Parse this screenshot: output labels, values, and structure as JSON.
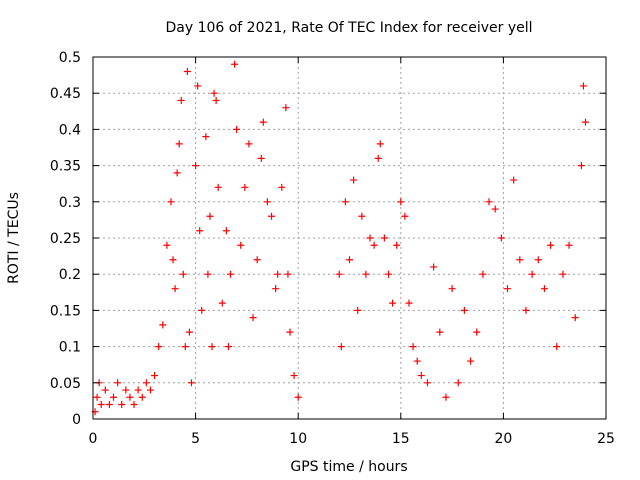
{
  "chart_data": {
    "type": "scatter",
    "title": "Day 106 of 2021, Rate Of TEC Index for receiver yell",
    "xlabel": "GPS time / hours",
    "ylabel": "ROTI / TECUs",
    "xlim": [
      0,
      25
    ],
    "ylim": [
      0,
      0.5
    ],
    "xticks": [
      0,
      5,
      10,
      15,
      20,
      25
    ],
    "yticks": [
      0,
      0.05,
      0.1,
      0.15,
      0.2,
      0.25,
      0.3,
      0.35,
      0.4,
      0.45,
      0.5
    ],
    "xtick_labels": [
      "0",
      "5",
      "10",
      "15",
      "20",
      "25"
    ],
    "ytick_labels": [
      "0",
      "0.05",
      "0.1",
      "0.15",
      "0.2",
      "0.25",
      "0.3",
      "0.35",
      "0.4",
      "0.45",
      "0.5"
    ],
    "grid": true,
    "marker": "+",
    "color": "#ff0000",
    "series": [
      {
        "name": "ROTI",
        "points": [
          [
            0.1,
            0.01
          ],
          [
            0.2,
            0.03
          ],
          [
            0.3,
            0.05
          ],
          [
            0.4,
            0.02
          ],
          [
            0.6,
            0.04
          ],
          [
            0.8,
            0.02
          ],
          [
            1.0,
            0.03
          ],
          [
            1.2,
            0.05
          ],
          [
            1.4,
            0.02
          ],
          [
            1.6,
            0.04
          ],
          [
            1.8,
            0.03
          ],
          [
            2.0,
            0.02
          ],
          [
            2.2,
            0.04
          ],
          [
            2.4,
            0.03
          ],
          [
            2.6,
            0.05
          ],
          [
            2.8,
            0.04
          ],
          [
            3.0,
            0.06
          ],
          [
            3.2,
            0.1
          ],
          [
            3.4,
            0.13
          ],
          [
            3.6,
            0.24
          ],
          [
            3.8,
            0.3
          ],
          [
            3.9,
            0.22
          ],
          [
            4.0,
            0.18
          ],
          [
            4.1,
            0.34
          ],
          [
            4.2,
            0.38
          ],
          [
            4.3,
            0.44
          ],
          [
            4.4,
            0.2
          ],
          [
            4.5,
            0.1
          ],
          [
            4.6,
            0.48
          ],
          [
            4.7,
            0.12
          ],
          [
            4.8,
            0.05
          ],
          [
            5.0,
            0.35
          ],
          [
            5.1,
            0.46
          ],
          [
            5.2,
            0.26
          ],
          [
            5.3,
            0.15
          ],
          [
            5.5,
            0.39
          ],
          [
            5.6,
            0.2
          ],
          [
            5.7,
            0.28
          ],
          [
            5.8,
            0.1
          ],
          [
            5.9,
            0.45
          ],
          [
            6.0,
            0.44
          ],
          [
            6.1,
            0.32
          ],
          [
            6.3,
            0.16
          ],
          [
            6.5,
            0.26
          ],
          [
            6.6,
            0.1
          ],
          [
            6.7,
            0.2
          ],
          [
            6.9,
            0.49
          ],
          [
            7.0,
            0.4
          ],
          [
            7.2,
            0.24
          ],
          [
            7.4,
            0.32
          ],
          [
            7.6,
            0.38
          ],
          [
            7.8,
            0.14
          ],
          [
            8.0,
            0.22
          ],
          [
            8.2,
            0.36
          ],
          [
            8.3,
            0.41
          ],
          [
            8.5,
            0.3
          ],
          [
            8.7,
            0.28
          ],
          [
            8.9,
            0.18
          ],
          [
            9.0,
            0.2
          ],
          [
            9.2,
            0.32
          ],
          [
            9.4,
            0.43
          ],
          [
            9.5,
            0.2
          ],
          [
            9.6,
            0.12
          ],
          [
            9.8,
            0.06
          ],
          [
            10.0,
            0.03
          ],
          [
            12.0,
            0.2
          ],
          [
            12.1,
            0.1
          ],
          [
            12.3,
            0.3
          ],
          [
            12.5,
            0.22
          ],
          [
            12.7,
            0.33
          ],
          [
            12.9,
            0.15
          ],
          [
            13.1,
            0.28
          ],
          [
            13.3,
            0.2
          ],
          [
            13.5,
            0.25
          ],
          [
            13.7,
            0.24
          ],
          [
            13.9,
            0.36
          ],
          [
            14.0,
            0.38
          ],
          [
            14.2,
            0.25
          ],
          [
            14.4,
            0.2
          ],
          [
            14.6,
            0.16
          ],
          [
            14.8,
            0.24
          ],
          [
            15.0,
            0.3
          ],
          [
            15.2,
            0.28
          ],
          [
            15.4,
            0.16
          ],
          [
            15.6,
            0.1
          ],
          [
            15.8,
            0.08
          ],
          [
            16.0,
            0.06
          ],
          [
            16.3,
            0.05
          ],
          [
            16.6,
            0.21
          ],
          [
            16.9,
            0.12
          ],
          [
            17.2,
            0.03
          ],
          [
            17.5,
            0.18
          ],
          [
            17.8,
            0.05
          ],
          [
            18.1,
            0.15
          ],
          [
            18.4,
            0.08
          ],
          [
            18.7,
            0.12
          ],
          [
            19.0,
            0.2
          ],
          [
            19.3,
            0.3
          ],
          [
            19.6,
            0.29
          ],
          [
            19.9,
            0.25
          ],
          [
            20.2,
            0.18
          ],
          [
            20.5,
            0.33
          ],
          [
            20.8,
            0.22
          ],
          [
            21.1,
            0.15
          ],
          [
            21.4,
            0.2
          ],
          [
            21.7,
            0.22
          ],
          [
            22.0,
            0.18
          ],
          [
            22.3,
            0.24
          ],
          [
            22.6,
            0.1
          ],
          [
            22.9,
            0.2
          ],
          [
            23.2,
            0.24
          ],
          [
            23.5,
            0.14
          ],
          [
            23.8,
            0.35
          ],
          [
            23.9,
            0.46
          ],
          [
            24.0,
            0.41
          ]
        ]
      }
    ]
  }
}
